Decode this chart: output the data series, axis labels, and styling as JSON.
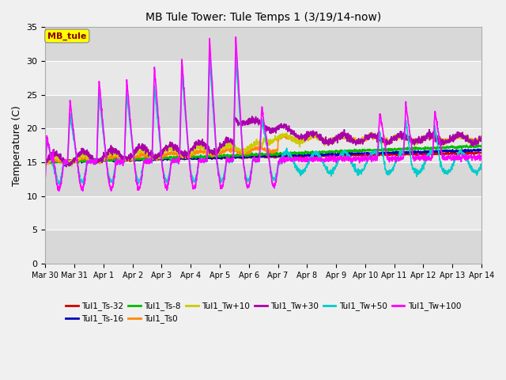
{
  "title": "MB Tule Tower: Tule Temps 1 (3/19/14-now)",
  "ylabel": "Temperature (C)",
  "ylim": [
    0,
    35
  ],
  "yticks": [
    0,
    5,
    10,
    15,
    20,
    25,
    30,
    35
  ],
  "legend_box_label": "MB_tule",
  "legend_box_color": "#ffff00",
  "legend_box_text_color": "#8b0000",
  "bg_color": "#f0f0f0",
  "plot_bg_color": "#e8e8e8",
  "band_colors": [
    "#d8d8d8",
    "#e8e8e8"
  ],
  "series": [
    {
      "label": "Tul1_Ts-32",
      "color": "#cc0000",
      "lw": 1.2
    },
    {
      "label": "Tul1_Ts-16",
      "color": "#0000bb",
      "lw": 1.2
    },
    {
      "label": "Tul1_Ts-8",
      "color": "#00bb00",
      "lw": 1.2
    },
    {
      "label": "Tul1_Ts0",
      "color": "#ff8800",
      "lw": 1.2
    },
    {
      "label": "Tul1_Tw+10",
      "color": "#cccc00",
      "lw": 1.2
    },
    {
      "label": "Tul1_Tw+30",
      "color": "#aa00aa",
      "lw": 1.2
    },
    {
      "label": "Tul1_Tw+50",
      "color": "#00cccc",
      "lw": 1.2
    },
    {
      "label": "Tul1_Tw+100",
      "color": "#ff00ff",
      "lw": 1.2
    }
  ],
  "xticklabels": [
    "Mar 30",
    "Mar 31",
    "Apr 1",
    "Apr 2",
    "Apr 3",
    "Apr 4",
    "Apr 5",
    "Apr 6",
    "Apr 7",
    "Apr 8",
    "Apr 9",
    "Apr 10",
    "Apr 11",
    "Apr 12",
    "Apr 13",
    "Apr 14"
  ],
  "xtick_positions": [
    0,
    1,
    2,
    3,
    4,
    5,
    6,
    7,
    8,
    9,
    10,
    11,
    12,
    13,
    14,
    15
  ]
}
